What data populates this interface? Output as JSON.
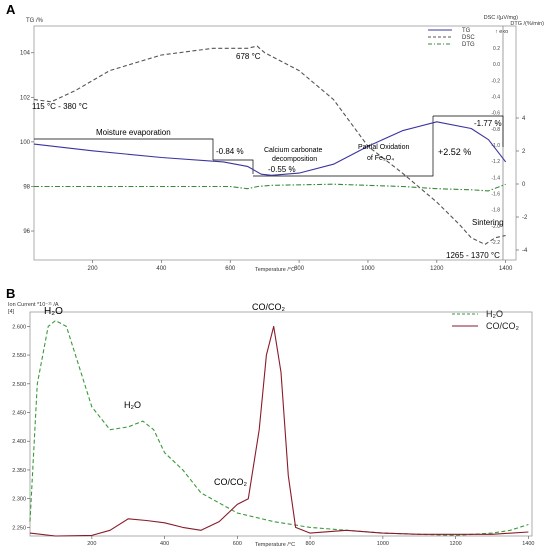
{
  "panel_a": {
    "label": "A",
    "ylabel_left": "TG /%",
    "ylabel_right_1": "DSC /(µV/mg)",
    "ylabel_right_2": "DTG /(%/min)",
    "exo_label": "↑ exo",
    "xlabel": "Temperature /°C",
    "legend": [
      "TG",
      "DSC",
      "DTG"
    ],
    "annotations": {
      "peak_678": "678 °C",
      "range_115_380": "115 °C - 380 °C",
      "moisture": "Moisture evaporation",
      "loss_084": "-0.84 %",
      "calcium_1": "Calcium carbonate",
      "calcium_2": "decomposition",
      "loss_055": "-0.55 %",
      "partial_1": "Partial Oxidation",
      "partial_2": "of Fe₃O₄",
      "gain_252": "+2.52 %",
      "loss_177": "-1.77 %",
      "sintering": "Sintering",
      "range_1265": "1265 - 1370 °C"
    }
  },
  "panel_b": {
    "label": "B",
    "ylabel": "Ion Current *10⁻¹¹ /A",
    "ylabel_sub": "[4]",
    "xlabel": "Temperature /°C",
    "legend": [
      "H₂O",
      "CO/CO₂"
    ],
    "annotations": {
      "h2o_1": "H₂O",
      "h2o_2": "H₂O",
      "co_peak": "CO/CO₂",
      "co_shoulder": "CO/CO₂"
    }
  },
  "chart_data": [
    {
      "type": "line",
      "title": "A",
      "xlabel": "Temperature /°C",
      "ylabel": "TG /%",
      "xlim": [
        30,
        1430
      ],
      "ylim": [
        94.7,
        105.2
      ],
      "x_ticks": [
        200,
        400,
        600,
        800,
        1000,
        1200,
        1400
      ],
      "y_ticks_left": [
        96,
        98,
        100,
        102,
        104
      ],
      "y_ticks_right_dsc": [
        0.2,
        0,
        -0.2,
        -0.4,
        -0.6,
        -0.8,
        -1.0,
        -1.2,
        -1.4,
        -1.6,
        -1.8,
        -2.0,
        -2.2
      ],
      "y_ticks_right_dtg": [
        4,
        2,
        0,
        -2,
        -4
      ],
      "grid": false,
      "legend_position": "top-right",
      "series": [
        {
          "name": "TG",
          "color": "#3a35a0",
          "style": "solid",
          "x": [
            30,
            200,
            400,
            580,
            650,
            690,
            720,
            800,
            900,
            1000,
            1100,
            1200,
            1300,
            1350,
            1400
          ],
          "y": [
            99.9,
            99.6,
            99.3,
            99.1,
            98.9,
            98.55,
            98.5,
            98.6,
            99.0,
            99.8,
            100.5,
            100.9,
            100.6,
            100.1,
            99.1
          ]
        },
        {
          "name": "DSC",
          "color": "#555555",
          "style": "dashed",
          "x": [
            30,
            80,
            150,
            250,
            400,
            550,
            650,
            678,
            700,
            800,
            900,
            1000,
            1100,
            1200,
            1265,
            1300,
            1340,
            1370,
            1400
          ],
          "y": [
            101.9,
            101.8,
            102.3,
            103.2,
            103.9,
            104.2,
            104.2,
            104.3,
            104.0,
            103.2,
            101.9,
            99.8,
            98.6,
            97.3,
            96.3,
            95.7,
            95.4,
            95.7,
            95.8
          ]
        },
        {
          "name": "DTG",
          "color": "#3a8a3a",
          "style": "dash-dot",
          "x": [
            30,
            300,
            600,
            650,
            680,
            720,
            900,
            1100,
            1200,
            1300,
            1350,
            1400
          ],
          "y": [
            98.0,
            98.0,
            98.0,
            97.9,
            98.0,
            98.05,
            98.1,
            98.0,
            97.9,
            97.85,
            97.8,
            98.1
          ]
        }
      ]
    },
    {
      "type": "line",
      "title": "B",
      "xlabel": "Temperature /°C",
      "ylabel": "Ion Current *10⁻¹¹ /A",
      "xlim": [
        30,
        1410
      ],
      "ylim": [
        2.235,
        2.625
      ],
      "x_ticks": [
        200,
        400,
        600,
        800,
        1000,
        1200,
        1400
      ],
      "y_ticks": [
        2.25,
        2.3,
        2.35,
        2.4,
        2.45,
        2.5,
        2.55,
        2.6
      ],
      "grid": false,
      "legend_position": "top-right",
      "series": [
        {
          "name": "H₂O",
          "color": "#3a9a3a",
          "style": "dashed",
          "x": [
            30,
            50,
            80,
            100,
            130,
            160,
            200,
            250,
            300,
            340,
            370,
            400,
            450,
            500,
            600,
            700,
            800,
            900,
            1000,
            1100,
            1200,
            1300,
            1350,
            1400
          ],
          "y": [
            2.26,
            2.5,
            2.6,
            2.61,
            2.6,
            2.54,
            2.46,
            2.42,
            2.425,
            2.435,
            2.42,
            2.38,
            2.35,
            2.31,
            2.275,
            2.26,
            2.25,
            2.245,
            2.24,
            2.238,
            2.236,
            2.24,
            2.245,
            2.255
          ]
        },
        {
          "name": "CO/CO₂",
          "color": "#8a1a2a",
          "style": "solid",
          "x": [
            30,
            100,
            200,
            250,
            300,
            350,
            400,
            450,
            500,
            550,
            600,
            630,
            660,
            680,
            700,
            720,
            740,
            760,
            800,
            900,
            1000,
            1100,
            1200,
            1300,
            1400
          ],
          "y": [
            2.24,
            2.235,
            2.236,
            2.245,
            2.265,
            2.262,
            2.258,
            2.25,
            2.245,
            2.26,
            2.29,
            2.3,
            2.42,
            2.55,
            2.6,
            2.52,
            2.34,
            2.25,
            2.24,
            2.245,
            2.24,
            2.238,
            2.238,
            2.238,
            2.242
          ]
        }
      ]
    }
  ]
}
